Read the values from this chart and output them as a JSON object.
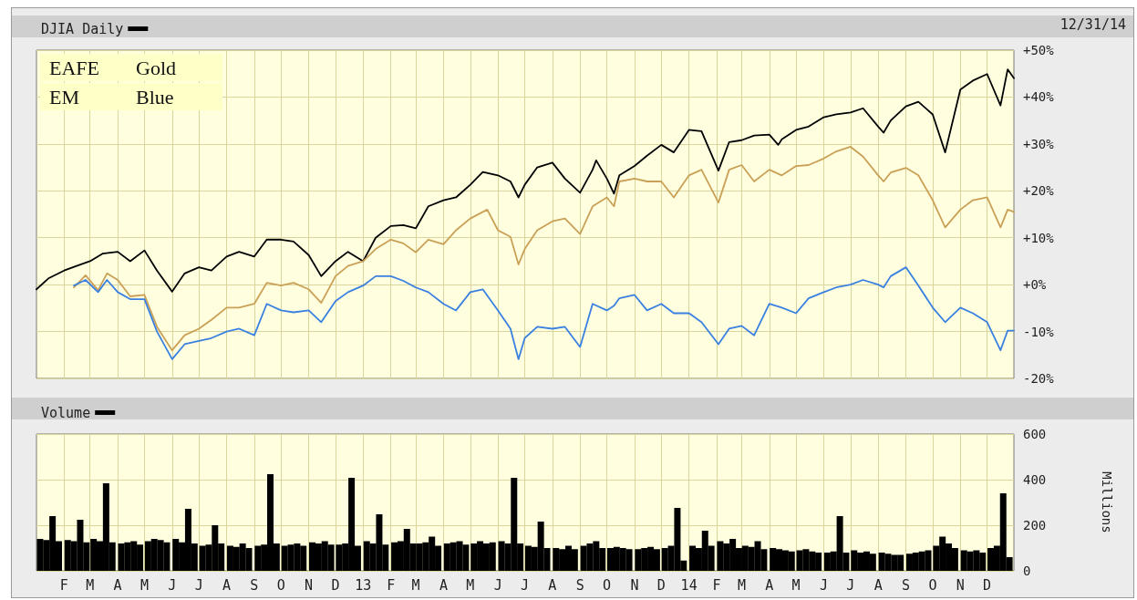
{
  "chart_data": [
    {
      "type": "line",
      "annotations": [
        "12/31/14",
        "EAFE Gold",
        "EM Blue"
      ],
      "xlim": [
        "2012-01-01",
        "2014-12-31"
      ],
      "xticks": [
        {
          "value": "2012-02",
          "label": null
        },
        {
          "value": "2012-03",
          "label": null
        },
        {
          "value": "2012-04",
          "label": null
        },
        {
          "value": "2012-05",
          "label": null
        },
        {
          "value": "2012-06",
          "label": null
        },
        {
          "value": "2012-07",
          "label": null
        },
        {
          "value": "2012-08",
          "label": null
        },
        {
          "value": "2012-09",
          "label": null
        },
        {
          "value": "2012-10",
          "label": null
        },
        {
          "value": "2012-11",
          "label": null
        },
        {
          "value": "2012-12",
          "label": null
        },
        {
          "value": "2013-01",
          "label": null
        },
        {
          "value": "2013-02",
          "label": null
        },
        {
          "value": "2013-03",
          "label": null
        },
        {
          "value": "2013-04",
          "label": null
        },
        {
          "value": "2013-05",
          "label": null
        },
        {
          "value": "2013-06",
          "label": null
        },
        {
          "value": "2013-07",
          "label": null
        },
        {
          "value": "2013-08",
          "label": null
        },
        {
          "value": "2013-09",
          "label": null
        },
        {
          "value": "2013-10",
          "label": null
        },
        {
          "value": "2013-11",
          "label": null
        },
        {
          "value": "2013-12",
          "label": null
        },
        {
          "value": "2014-01",
          "label": null
        },
        {
          "value": "2014-02",
          "label": null
        },
        {
          "value": "2014-03",
          "label": null
        },
        {
          "value": "2014-04",
          "label": null
        },
        {
          "value": "2014-05",
          "label": null
        },
        {
          "value": "2014-06",
          "label": null
        },
        {
          "value": "2014-07",
          "label": null
        },
        {
          "value": "2014-08",
          "label": null
        },
        {
          "value": "2014-09",
          "label": null
        },
        {
          "value": "2014-10",
          "label": null
        },
        {
          "value": "2014-11",
          "label": null
        },
        {
          "value": "2014-12",
          "label": null
        }
      ],
      "ylim": [
        -20,
        50
      ],
      "yticks": [
        {
          "value": -20,
          "label": "-20%"
        },
        {
          "value": -10,
          "label": "-10%"
        },
        {
          "value": 0,
          "label": "+0%"
        },
        {
          "value": 10,
          "label": "+10%"
        },
        {
          "value": 20,
          "label": "+20%"
        },
        {
          "value": 30,
          "label": "+30%"
        },
        {
          "value": 40,
          "label": "+40%"
        },
        {
          "value": 50,
          "label": "+50%"
        }
      ],
      "grid": true,
      "legend": "top left",
      "tick_labels": "y",
      "series": [
        {
          "name": "DJIA Daily",
          "color": "#000000",
          "x": [
            "2012-01-01",
            "2012-01-15",
            "2012-02-01",
            "2012-02-15",
            "2012-03-01",
            "2012-03-15",
            "2012-04-01",
            "2012-04-15",
            "2012-05-01",
            "2012-05-15",
            "2012-06-01",
            "2012-06-15",
            "2012-07-01",
            "2012-07-15",
            "2012-08-01",
            "2012-08-15",
            "2012-09-01",
            "2012-09-15",
            "2012-10-01",
            "2012-10-15",
            "2012-11-01",
            "2012-11-15",
            "2012-12-01",
            "2012-12-15",
            "2013-01-01",
            "2013-01-15",
            "2013-02-01",
            "2013-02-15",
            "2013-03-01",
            "2013-03-15",
            "2013-04-01",
            "2013-04-15",
            "2013-05-01",
            "2013-05-15",
            "2013-06-01",
            "2013-06-15",
            "2013-06-24",
            "2013-07-01",
            "2013-07-15",
            "2013-08-01",
            "2013-08-15",
            "2013-09-01",
            "2013-09-15",
            "2013-09-19",
            "2013-10-01",
            "2013-10-09",
            "2013-10-15",
            "2013-11-01",
            "2013-11-15",
            "2013-12-01",
            "2013-12-15",
            "2014-01-01",
            "2014-01-15",
            "2014-02-03",
            "2014-02-15",
            "2014-03-01",
            "2014-03-15",
            "2014-04-01",
            "2014-04-11",
            "2014-04-15",
            "2014-05-01",
            "2014-05-15",
            "2014-06-01",
            "2014-06-15",
            "2014-07-01",
            "2014-07-15",
            "2014-08-01",
            "2014-08-07",
            "2014-08-15",
            "2014-09-01",
            "2014-09-15",
            "2014-10-01",
            "2014-10-15",
            "2014-11-01",
            "2014-11-15",
            "2014-12-01",
            "2014-12-16",
            "2014-12-24",
            "2014-12-31"
          ],
          "values": [
            -1,
            1.4,
            3,
            4,
            5,
            6.6,
            7,
            5,
            7.3,
            3,
            -1.5,
            2.4,
            3.7,
            3,
            6,
            7,
            6,
            9.6,
            9.6,
            9.2,
            6.3,
            1.8,
            5,
            7,
            5,
            10,
            12.5,
            12.7,
            12,
            16.7,
            18,
            18.6,
            21.3,
            24,
            23.3,
            22,
            18.6,
            21.3,
            25,
            26,
            22.6,
            19.6,
            24.5,
            26.5,
            22.6,
            19.4,
            23.3,
            25.3,
            27.5,
            29.8,
            28.2,
            33,
            32.7,
            24.3,
            30.4,
            30.8,
            31.8,
            32,
            29.8,
            31,
            33,
            33.7,
            35.7,
            36.3,
            36.7,
            37.6,
            33.7,
            32.4,
            35,
            38,
            39,
            36.3,
            28.2,
            41.6,
            43.5,
            44.9,
            38.2,
            45.9,
            44
          ]
        },
        {
          "color": "#c9a055",
          "x": [
            "2012-02-12",
            "2012-02-25",
            "2012-03-10",
            "2012-03-20",
            "2012-04-01",
            "2012-04-15",
            "2012-05-01",
            "2012-05-15",
            "2012-06-01",
            "2012-06-15",
            "2012-07-01",
            "2012-07-15",
            "2012-08-01",
            "2012-08-15",
            "2012-09-01",
            "2012-09-15",
            "2012-10-01",
            "2012-10-15",
            "2012-11-01",
            "2012-11-15",
            "2012-12-01",
            "2012-12-15",
            "2013-01-01",
            "2013-01-15",
            "2013-02-01",
            "2013-02-15",
            "2013-03-01",
            "2013-03-15",
            "2013-04-01",
            "2013-04-15",
            "2013-05-01",
            "2013-05-20",
            "2013-06-01",
            "2013-06-15",
            "2013-06-24",
            "2013-07-01",
            "2013-07-15",
            "2013-08-01",
            "2013-08-15",
            "2013-09-01",
            "2013-09-15",
            "2013-10-01",
            "2013-10-09",
            "2013-10-15",
            "2013-11-01",
            "2013-11-15",
            "2013-12-01",
            "2013-12-15",
            "2014-01-01",
            "2014-01-15",
            "2014-02-03",
            "2014-02-15",
            "2014-03-01",
            "2014-03-15",
            "2014-04-01",
            "2014-04-15",
            "2014-05-01",
            "2014-05-15",
            "2014-06-01",
            "2014-06-15",
            "2014-07-01",
            "2014-07-15",
            "2014-08-01",
            "2014-08-07",
            "2014-08-15",
            "2014-09-01",
            "2014-09-15",
            "2014-10-01",
            "2014-10-15",
            "2014-11-01",
            "2014-11-15",
            "2014-12-01",
            "2014-12-16",
            "2014-12-24",
            "2014-12-31"
          ],
          "values": [
            -0.6,
            2,
            -1.2,
            2.4,
            1,
            -2.5,
            -2.2,
            -9,
            -14,
            -10.8,
            -9.4,
            -7.5,
            -4.9,
            -4.9,
            -4.1,
            0.4,
            -0.2,
            0.4,
            -1,
            -3.9,
            1.8,
            4,
            5,
            7.6,
            9.6,
            8.8,
            6.9,
            9.6,
            8.6,
            11.6,
            14.1,
            16,
            11.6,
            10.2,
            4.3,
            7.6,
            11.6,
            13.5,
            14.1,
            10.8,
            16.7,
            18.6,
            16.7,
            22,
            22.6,
            22,
            22,
            18.6,
            23.3,
            24.5,
            17.5,
            24.5,
            25.5,
            22,
            24.5,
            23.3,
            25.3,
            25.5,
            26.9,
            28.4,
            29.4,
            27.3,
            23.3,
            22,
            23.9,
            24.9,
            23.3,
            18,
            12.2,
            16,
            18,
            18.6,
            12.2,
            16,
            15.5
          ]
        },
        {
          "color": "#3a80e0",
          "x": [
            "2012-02-12",
            "2012-02-25",
            "2012-03-10",
            "2012-03-20",
            "2012-04-01",
            "2012-04-15",
            "2012-05-01",
            "2012-05-15",
            "2012-06-01",
            "2012-06-15",
            "2012-07-01",
            "2012-07-15",
            "2012-08-01",
            "2012-08-15",
            "2012-09-01",
            "2012-09-15",
            "2012-10-01",
            "2012-10-15",
            "2012-11-01",
            "2012-11-15",
            "2012-12-01",
            "2012-12-15",
            "2013-01-01",
            "2013-01-15",
            "2013-02-01",
            "2013-02-15",
            "2013-03-01",
            "2013-03-15",
            "2013-04-01",
            "2013-04-15",
            "2013-05-01",
            "2013-05-15",
            "2013-06-01",
            "2013-06-15",
            "2013-06-24",
            "2013-07-01",
            "2013-07-15",
            "2013-08-01",
            "2013-08-15",
            "2013-09-01",
            "2013-09-15",
            "2013-10-01",
            "2013-10-09",
            "2013-10-15",
            "2013-11-01",
            "2013-11-15",
            "2013-12-01",
            "2013-12-15",
            "2014-01-01",
            "2014-01-15",
            "2014-02-03",
            "2014-02-15",
            "2014-03-01",
            "2014-03-15",
            "2014-04-01",
            "2014-04-15",
            "2014-05-01",
            "2014-05-15",
            "2014-06-01",
            "2014-06-15",
            "2014-07-01",
            "2014-07-15",
            "2014-08-01",
            "2014-08-07",
            "2014-08-15",
            "2014-09-01",
            "2014-09-15",
            "2014-10-01",
            "2014-10-15",
            "2014-11-01",
            "2014-11-15",
            "2014-12-01",
            "2014-12-16",
            "2014-12-24",
            "2014-12-31"
          ],
          "values": [
            -0.2,
            1,
            -1.6,
            1,
            -1.6,
            -3.1,
            -3.1,
            -10,
            -15.9,
            -12.7,
            -12,
            -11.4,
            -10,
            -9.4,
            -10.8,
            -4.1,
            -5.5,
            -5.9,
            -5.5,
            -8,
            -3.5,
            -1.6,
            -0.2,
            1.8,
            1.8,
            0.8,
            -0.6,
            -1.6,
            -4.1,
            -5.5,
            -1.6,
            -1,
            -5.5,
            -9.4,
            -15.9,
            -11.4,
            -9,
            -9.4,
            -9,
            -13.3,
            -4.1,
            -5.5,
            -4.5,
            -2.9,
            -2.2,
            -5.5,
            -4.1,
            -6.1,
            -6.1,
            -8,
            -12.7,
            -9.4,
            -8.8,
            -10.8,
            -4.1,
            -4.9,
            -6.1,
            -2.9,
            -1.6,
            -0.6,
            0,
            1,
            0,
            -0.6,
            1.8,
            3.7,
            -0.2,
            -4.9,
            -8,
            -4.9,
            -6.1,
            -8,
            -14,
            -9.8,
            -9.8
          ]
        }
      ]
    },
    {
      "type": "bar",
      "ylabel": "Millions",
      "xlim": [
        "2012-01-01",
        "2014-12-31"
      ],
      "xticks": [
        {
          "value": "2012-02",
          "label": "F"
        },
        {
          "value": "2012-03",
          "label": "M"
        },
        {
          "value": "2012-04",
          "label": "A"
        },
        {
          "value": "2012-05",
          "label": "M"
        },
        {
          "value": "2012-06",
          "label": "J"
        },
        {
          "value": "2012-07",
          "label": "J"
        },
        {
          "value": "2012-08",
          "label": "A"
        },
        {
          "value": "2012-09",
          "label": "S"
        },
        {
          "value": "2012-10",
          "label": "O"
        },
        {
          "value": "2012-11",
          "label": "N"
        },
        {
          "value": "2012-12",
          "label": "D"
        },
        {
          "value": "2013-01",
          "label": "13"
        },
        {
          "value": "2013-02",
          "label": "F"
        },
        {
          "value": "2013-03",
          "label": "M"
        },
        {
          "value": "2013-04",
          "label": "A"
        },
        {
          "value": "2013-05",
          "label": "M"
        },
        {
          "value": "2013-06",
          "label": "J"
        },
        {
          "value": "2013-07",
          "label": "J"
        },
        {
          "value": "2013-08",
          "label": "A"
        },
        {
          "value": "2013-09",
          "label": "S"
        },
        {
          "value": "2013-10",
          "label": "O"
        },
        {
          "value": "2013-11",
          "label": "N"
        },
        {
          "value": "2013-12",
          "label": "D"
        },
        {
          "value": "2014-01",
          "label": "14"
        },
        {
          "value": "2014-02",
          "label": "F"
        },
        {
          "value": "2014-03",
          "label": "M"
        },
        {
          "value": "2014-04",
          "label": "A"
        },
        {
          "value": "2014-05",
          "label": "M"
        },
        {
          "value": "2014-06",
          "label": "J"
        },
        {
          "value": "2014-07",
          "label": "J"
        },
        {
          "value": "2014-08",
          "label": "A"
        },
        {
          "value": "2014-09",
          "label": "S"
        },
        {
          "value": "2014-10",
          "label": "O"
        },
        {
          "value": "2014-11",
          "label": "N"
        },
        {
          "value": "2014-12",
          "label": "D"
        }
      ],
      "ylim": [
        0,
        600
      ],
      "yticks": [
        0,
        200,
        400,
        600
      ],
      "grid": true,
      "legend": "top left",
      "series": [
        {
          "name": "Volume",
          "color": "#000000",
          "x": [
            "2012-01-05",
            "2012-01-12",
            "2012-01-19",
            "2012-01-26",
            "2012-02-05",
            "2012-02-12",
            "2012-02-19",
            "2012-02-26",
            "2012-03-05",
            "2012-03-12",
            "2012-03-19",
            "2012-03-26",
            "2012-04-05",
            "2012-04-12",
            "2012-04-19",
            "2012-04-26",
            "2012-05-05",
            "2012-05-12",
            "2012-05-19",
            "2012-05-26",
            "2012-06-05",
            "2012-06-12",
            "2012-06-19",
            "2012-06-26",
            "2012-07-05",
            "2012-07-12",
            "2012-07-19",
            "2012-07-26",
            "2012-08-05",
            "2012-08-12",
            "2012-08-19",
            "2012-08-26",
            "2012-09-05",
            "2012-09-12",
            "2012-09-19",
            "2012-09-26",
            "2012-10-05",
            "2012-10-12",
            "2012-10-19",
            "2012-10-26",
            "2012-11-05",
            "2012-11-12",
            "2012-11-19",
            "2012-11-26",
            "2012-12-05",
            "2012-12-12",
            "2012-12-19",
            "2012-12-26",
            "2013-01-05",
            "2013-01-12",
            "2013-01-19",
            "2013-01-26",
            "2013-02-05",
            "2013-02-12",
            "2013-02-19",
            "2013-02-26",
            "2013-03-05",
            "2013-03-12",
            "2013-03-19",
            "2013-03-26",
            "2013-04-05",
            "2013-04-12",
            "2013-04-19",
            "2013-04-26",
            "2013-05-05",
            "2013-05-12",
            "2013-05-19",
            "2013-05-26",
            "2013-06-05",
            "2013-06-12",
            "2013-06-19",
            "2013-06-26",
            "2013-07-05",
            "2013-07-12",
            "2013-07-19",
            "2013-07-26",
            "2013-08-05",
            "2013-08-12",
            "2013-08-19",
            "2013-08-26",
            "2013-09-05",
            "2013-09-12",
            "2013-09-19",
            "2013-09-26",
            "2013-10-05",
            "2013-10-12",
            "2013-10-19",
            "2013-10-26",
            "2013-11-05",
            "2013-11-12",
            "2013-11-19",
            "2013-11-26",
            "2013-12-05",
            "2013-12-12",
            "2013-12-19",
            "2013-12-26",
            "2014-01-05",
            "2014-01-12",
            "2014-01-19",
            "2014-01-26",
            "2014-02-05",
            "2014-02-12",
            "2014-02-19",
            "2014-02-26",
            "2014-03-05",
            "2014-03-12",
            "2014-03-19",
            "2014-03-26",
            "2014-04-05",
            "2014-04-12",
            "2014-04-19",
            "2014-04-26",
            "2014-05-05",
            "2014-05-12",
            "2014-05-19",
            "2014-05-26",
            "2014-06-05",
            "2014-06-12",
            "2014-06-19",
            "2014-06-26",
            "2014-07-05",
            "2014-07-12",
            "2014-07-19",
            "2014-07-26",
            "2014-08-05",
            "2014-08-12",
            "2014-08-19",
            "2014-08-26",
            "2014-09-05",
            "2014-09-12",
            "2014-09-19",
            "2014-09-26",
            "2014-10-05",
            "2014-10-12",
            "2014-10-19",
            "2014-10-26",
            "2014-11-05",
            "2014-11-12",
            "2014-11-19",
            "2014-11-26",
            "2014-12-05",
            "2014-12-12",
            "2014-12-19",
            "2014-12-26"
          ],
          "values": [
            140,
            135,
            240,
            130,
            135,
            130,
            224,
            125,
            140,
            130,
            384,
            125,
            120,
            125,
            130,
            115,
            130,
            140,
            135,
            125,
            140,
            125,
            272,
            120,
            110,
            115,
            200,
            120,
            110,
            105,
            120,
            100,
            110,
            115,
            424,
            120,
            110,
            115,
            120,
            110,
            125,
            120,
            130,
            115,
            115,
            120,
            408,
            110,
            130,
            120,
            248,
            115,
            125,
            130,
            184,
            120,
            120,
            125,
            150,
            110,
            120,
            125,
            130,
            115,
            120,
            130,
            120,
            125,
            130,
            120,
            408,
            120,
            110,
            105,
            216,
            100,
            100,
            95,
            110,
            95,
            110,
            120,
            130,
            100,
            100,
            105,
            100,
            95,
            95,
            100,
            105,
            95,
            100,
            110,
            276,
            45,
            110,
            100,
            176,
            110,
            130,
            120,
            140,
            100,
            110,
            105,
            130,
            95,
            100,
            95,
            90,
            85,
            90,
            95,
            85,
            80,
            80,
            85,
            240,
            80,
            90,
            80,
            85,
            75,
            80,
            75,
            70,
            70,
            75,
            80,
            85,
            90,
            110,
            150,
            120,
            100,
            90,
            85,
            90,
            80,
            100,
            110,
            340,
            60
          ]
        }
      ]
    }
  ]
}
